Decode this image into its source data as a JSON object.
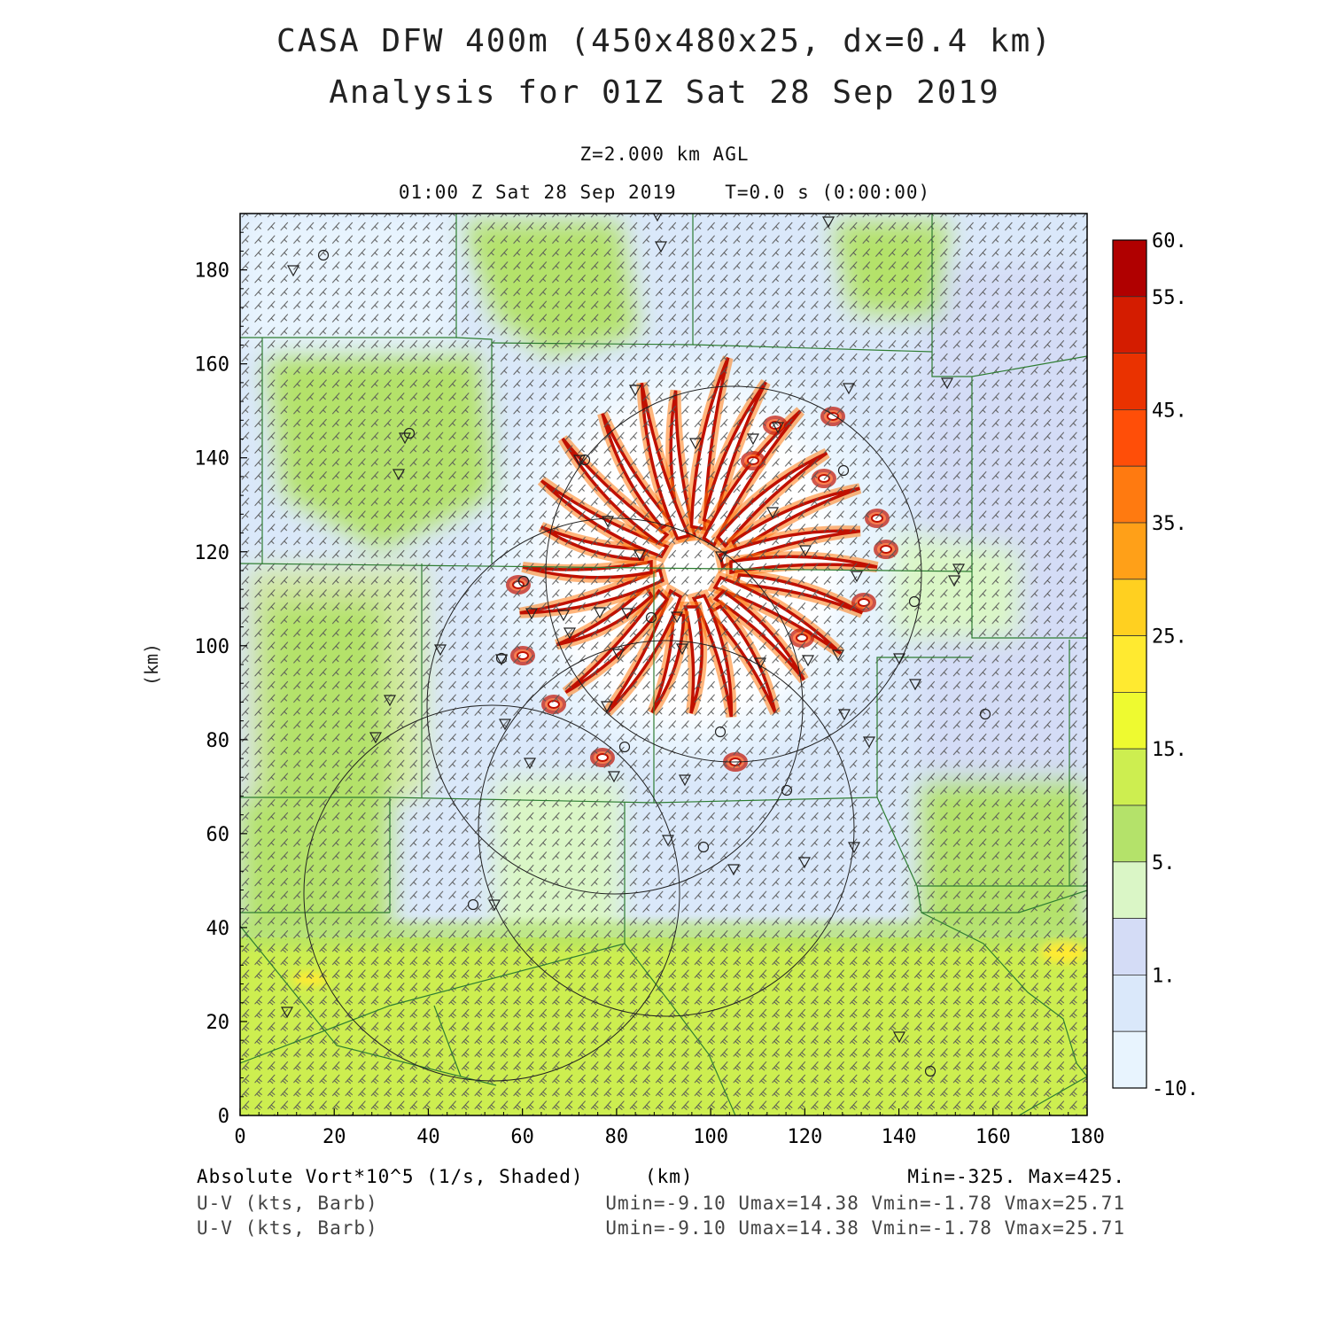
{
  "titles": {
    "line1": "CASA DFW 400m (450x480x25, dx=0.4 km)",
    "line2": "Analysis for 01Z Sat 28 Sep 2019",
    "level": "Z=2.000 km AGL",
    "time": "01:00 Z Sat 28 Sep 2019    T=0.0 s (0:00:00)"
  },
  "axes": {
    "xlabel": "(km)",
    "ylabel": "(km)",
    "xlim": [
      0,
      180
    ],
    "ylim": [
      0,
      192
    ],
    "xticks": [
      "0",
      "20",
      "40",
      "60",
      "80",
      "100",
      "120",
      "140",
      "160",
      "180"
    ],
    "yticks": [
      "0",
      "20",
      "40",
      "60",
      "80",
      "100",
      "120",
      "140",
      "160",
      "180"
    ]
  },
  "colorbar": {
    "labels": [
      "60.",
      "55.",
      "45.",
      "35.",
      "25.",
      "15.",
      "5.",
      "1.",
      "-10."
    ],
    "colors": [
      "#b00000",
      "#d41c00",
      "#ea3200",
      "#ff4e08",
      "#ff7a10",
      "#ffa018",
      "#ffd020",
      "#ffea30",
      "#eefa30",
      "#cdee50",
      "#b4e26a",
      "#daf6c6",
      "#d4dcf6",
      "#dae8fa",
      "#e8f4fe"
    ]
  },
  "footer": {
    "field": "Absolute Vort*10^5 (1/s, Shaded)",
    "units": "(km)",
    "minmax": "Min=-325. Max=425.",
    "barb1": "U-V (kts, Barb)",
    "barb2": "U-V (kts, Barb)",
    "stats1": "Umin=-9.10 Umax=14.38 Vmin=-1.78 Vmax=25.71",
    "stats2": "Umin=-9.10 Umax=14.38 Vmin=-1.78 Vmax=25.71"
  }
}
